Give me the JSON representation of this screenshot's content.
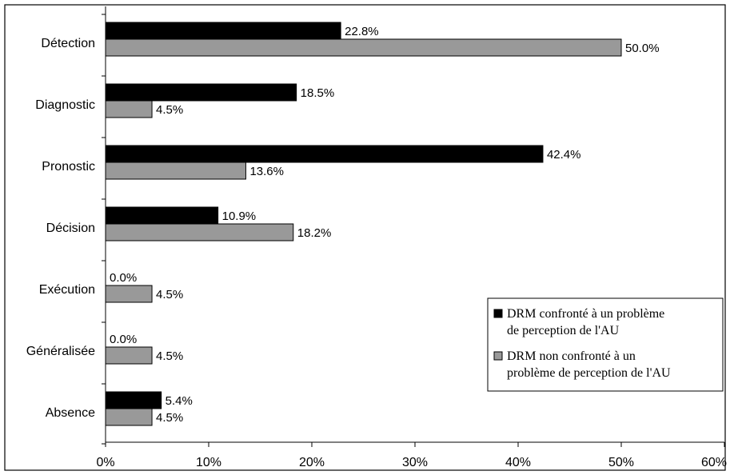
{
  "chart_data": {
    "type": "bar",
    "orientation": "horizontal",
    "categories": [
      "Détection",
      "Diagnostic",
      "Pronostic",
      "Décision",
      "Exécution",
      "Généralisée",
      "Absence"
    ],
    "series": [
      {
        "name": "DRM confronté à un problème de perception de l'AU",
        "name_lines": [
          "DRM confronté à un problème",
          "de perception de l'AU"
        ],
        "color": "#000000",
        "values": [
          22.8,
          18.5,
          42.4,
          10.9,
          0.0,
          0.0,
          5.4
        ],
        "labels": [
          "22.8%",
          "18.5%",
          "42.4%",
          "10.9%",
          "0.0%",
          "0.0%",
          "5.4%"
        ]
      },
      {
        "name": "DRM non confronté à un problème de perception de l'AU",
        "name_lines": [
          "DRM non confronté à un",
          "problème de perception de l'AU"
        ],
        "color": "#999999",
        "values": [
          50.0,
          4.5,
          13.6,
          18.2,
          4.5,
          4.5,
          4.5
        ],
        "labels": [
          "50.0%",
          "4.5%",
          "13.6%",
          "18.2%",
          "4.5%",
          "4.5%",
          "4.5%"
        ]
      }
    ],
    "xlim": [
      0,
      60
    ],
    "xticks": [
      "0%",
      "10%",
      "20%",
      "30%",
      "40%",
      "50%",
      "60%"
    ],
    "grid": false,
    "legend_position": "right"
  }
}
